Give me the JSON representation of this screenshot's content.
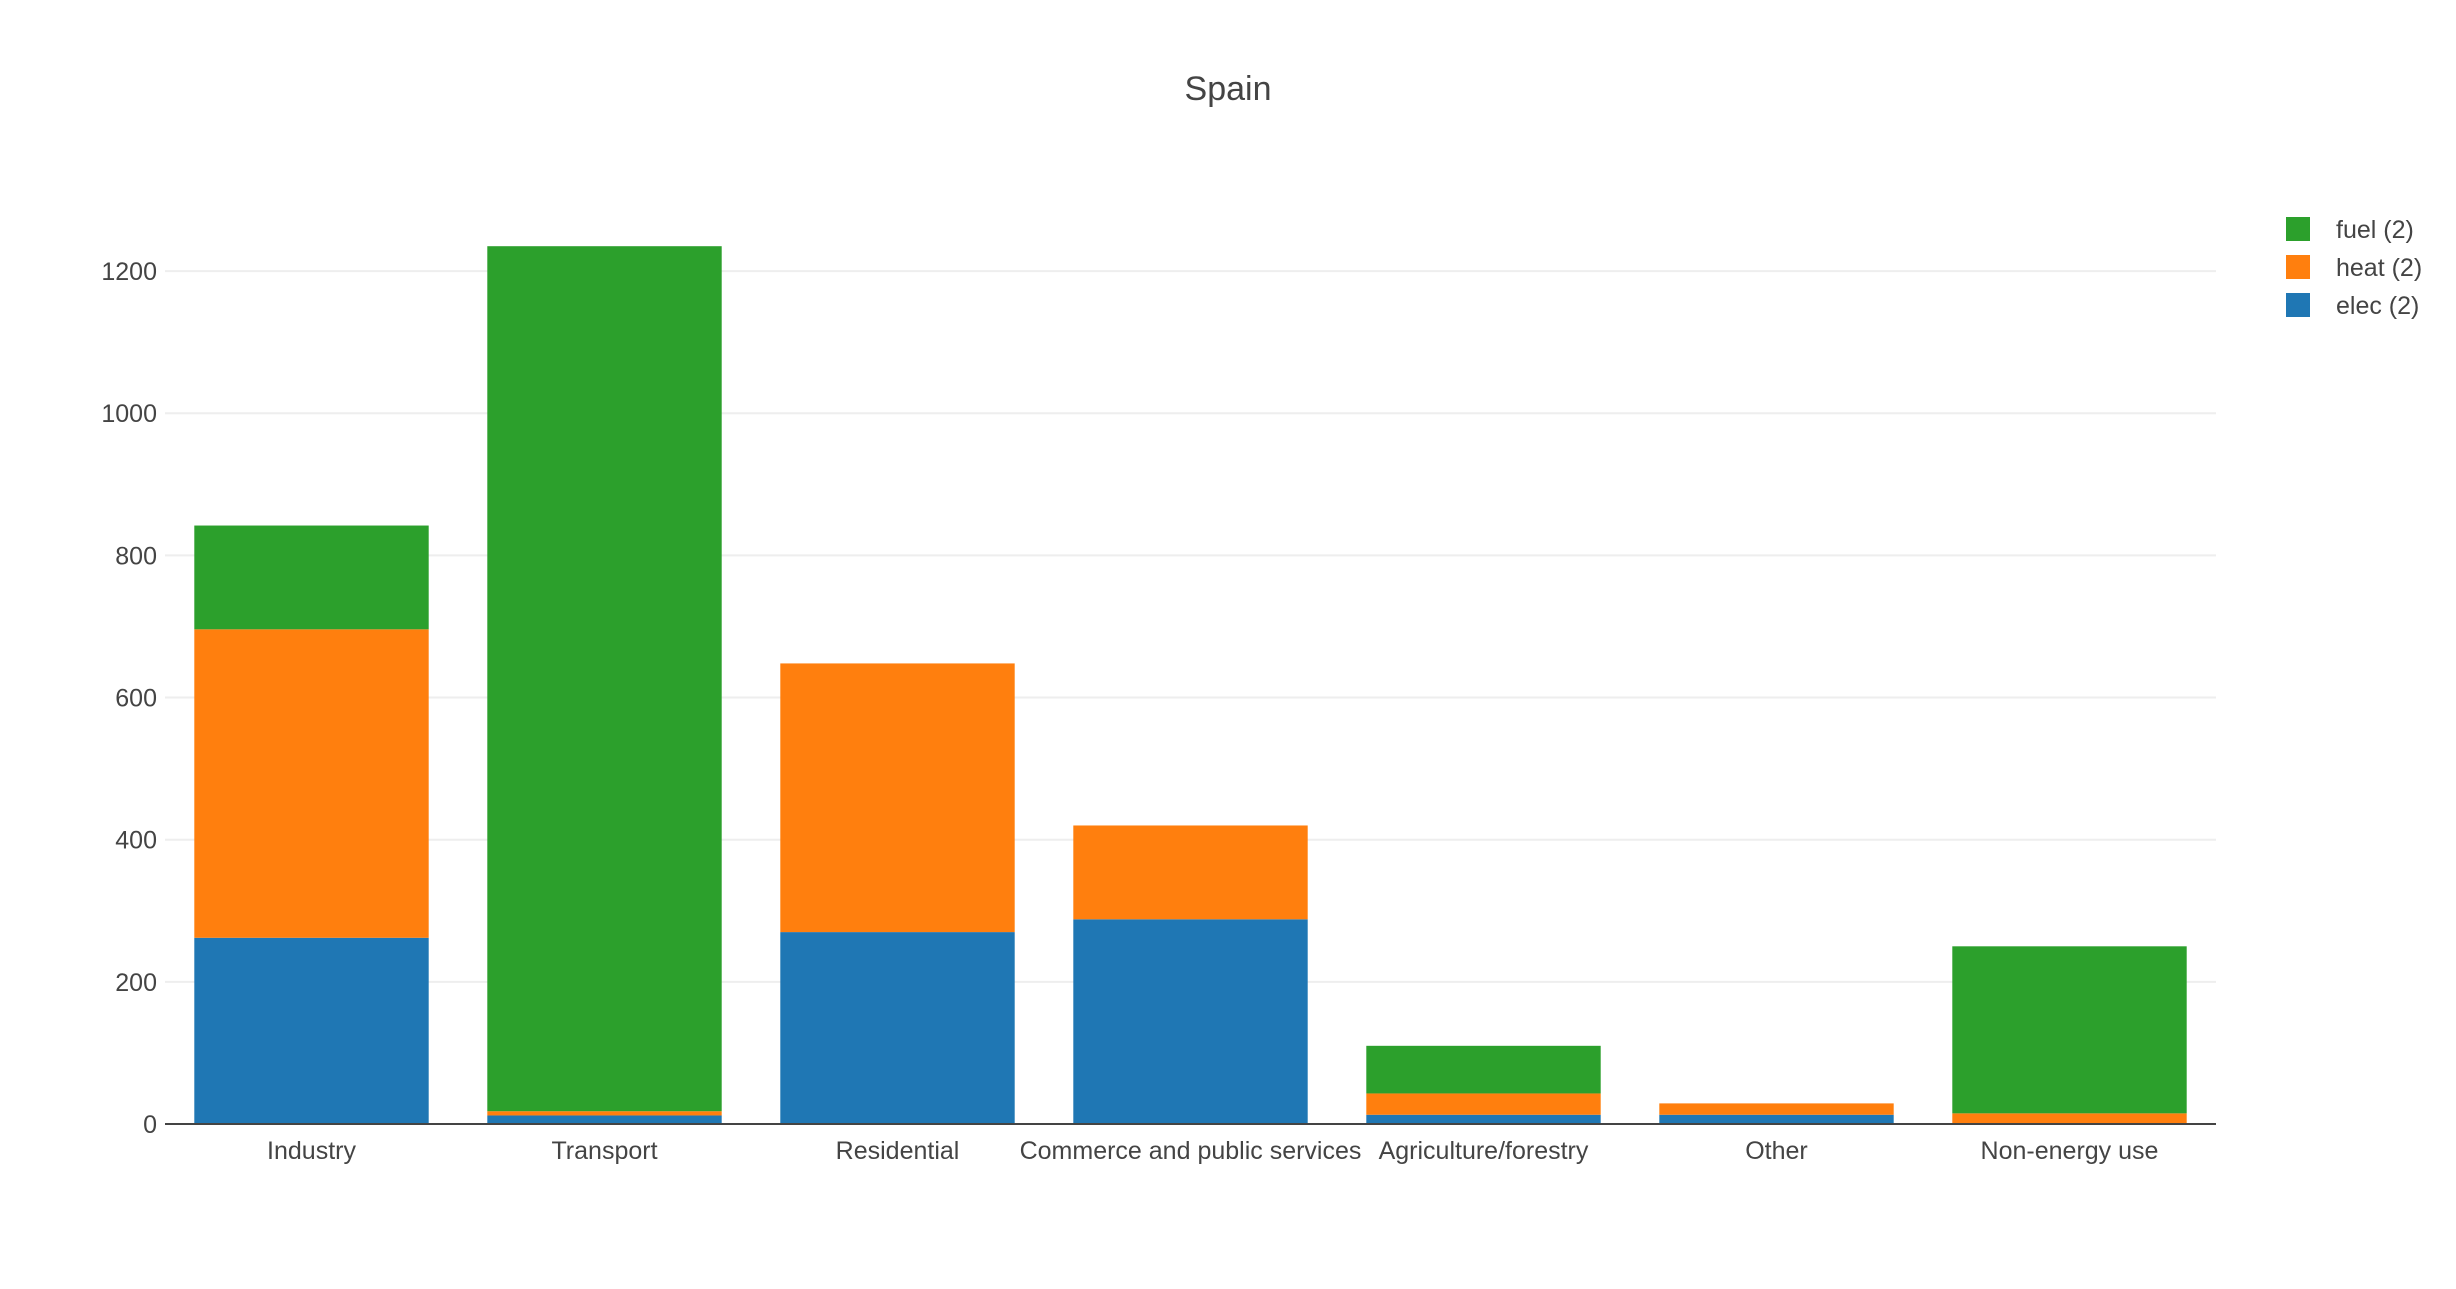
{
  "chart_data": {
    "type": "bar",
    "barmode": "stack",
    "title": "Spain",
    "xlabel": "",
    "ylabel": "",
    "categories": [
      "Industry",
      "Transport",
      "Residential",
      "Commerce and public services",
      "Agriculture/forestry",
      "Other",
      "Non-energy use"
    ],
    "series": [
      {
        "name": "elec (2)",
        "color": "#1f77b4",
        "values": [
          262,
          12,
          270,
          288,
          13,
          13,
          0
        ]
      },
      {
        "name": "heat (2)",
        "color": "#ff7f0e",
        "values": [
          434,
          6,
          378,
          132,
          30,
          16,
          15
        ]
      },
      {
        "name": "fuel (2)",
        "color": "#2ca02c",
        "values": [
          146,
          1217,
          0,
          0,
          67,
          0,
          235
        ]
      }
    ],
    "ylim": [
      0,
      1300
    ],
    "yticks": [
      0,
      200,
      400,
      600,
      800,
      1000,
      1200
    ],
    "grid": true,
    "legend_position": "top-right"
  }
}
